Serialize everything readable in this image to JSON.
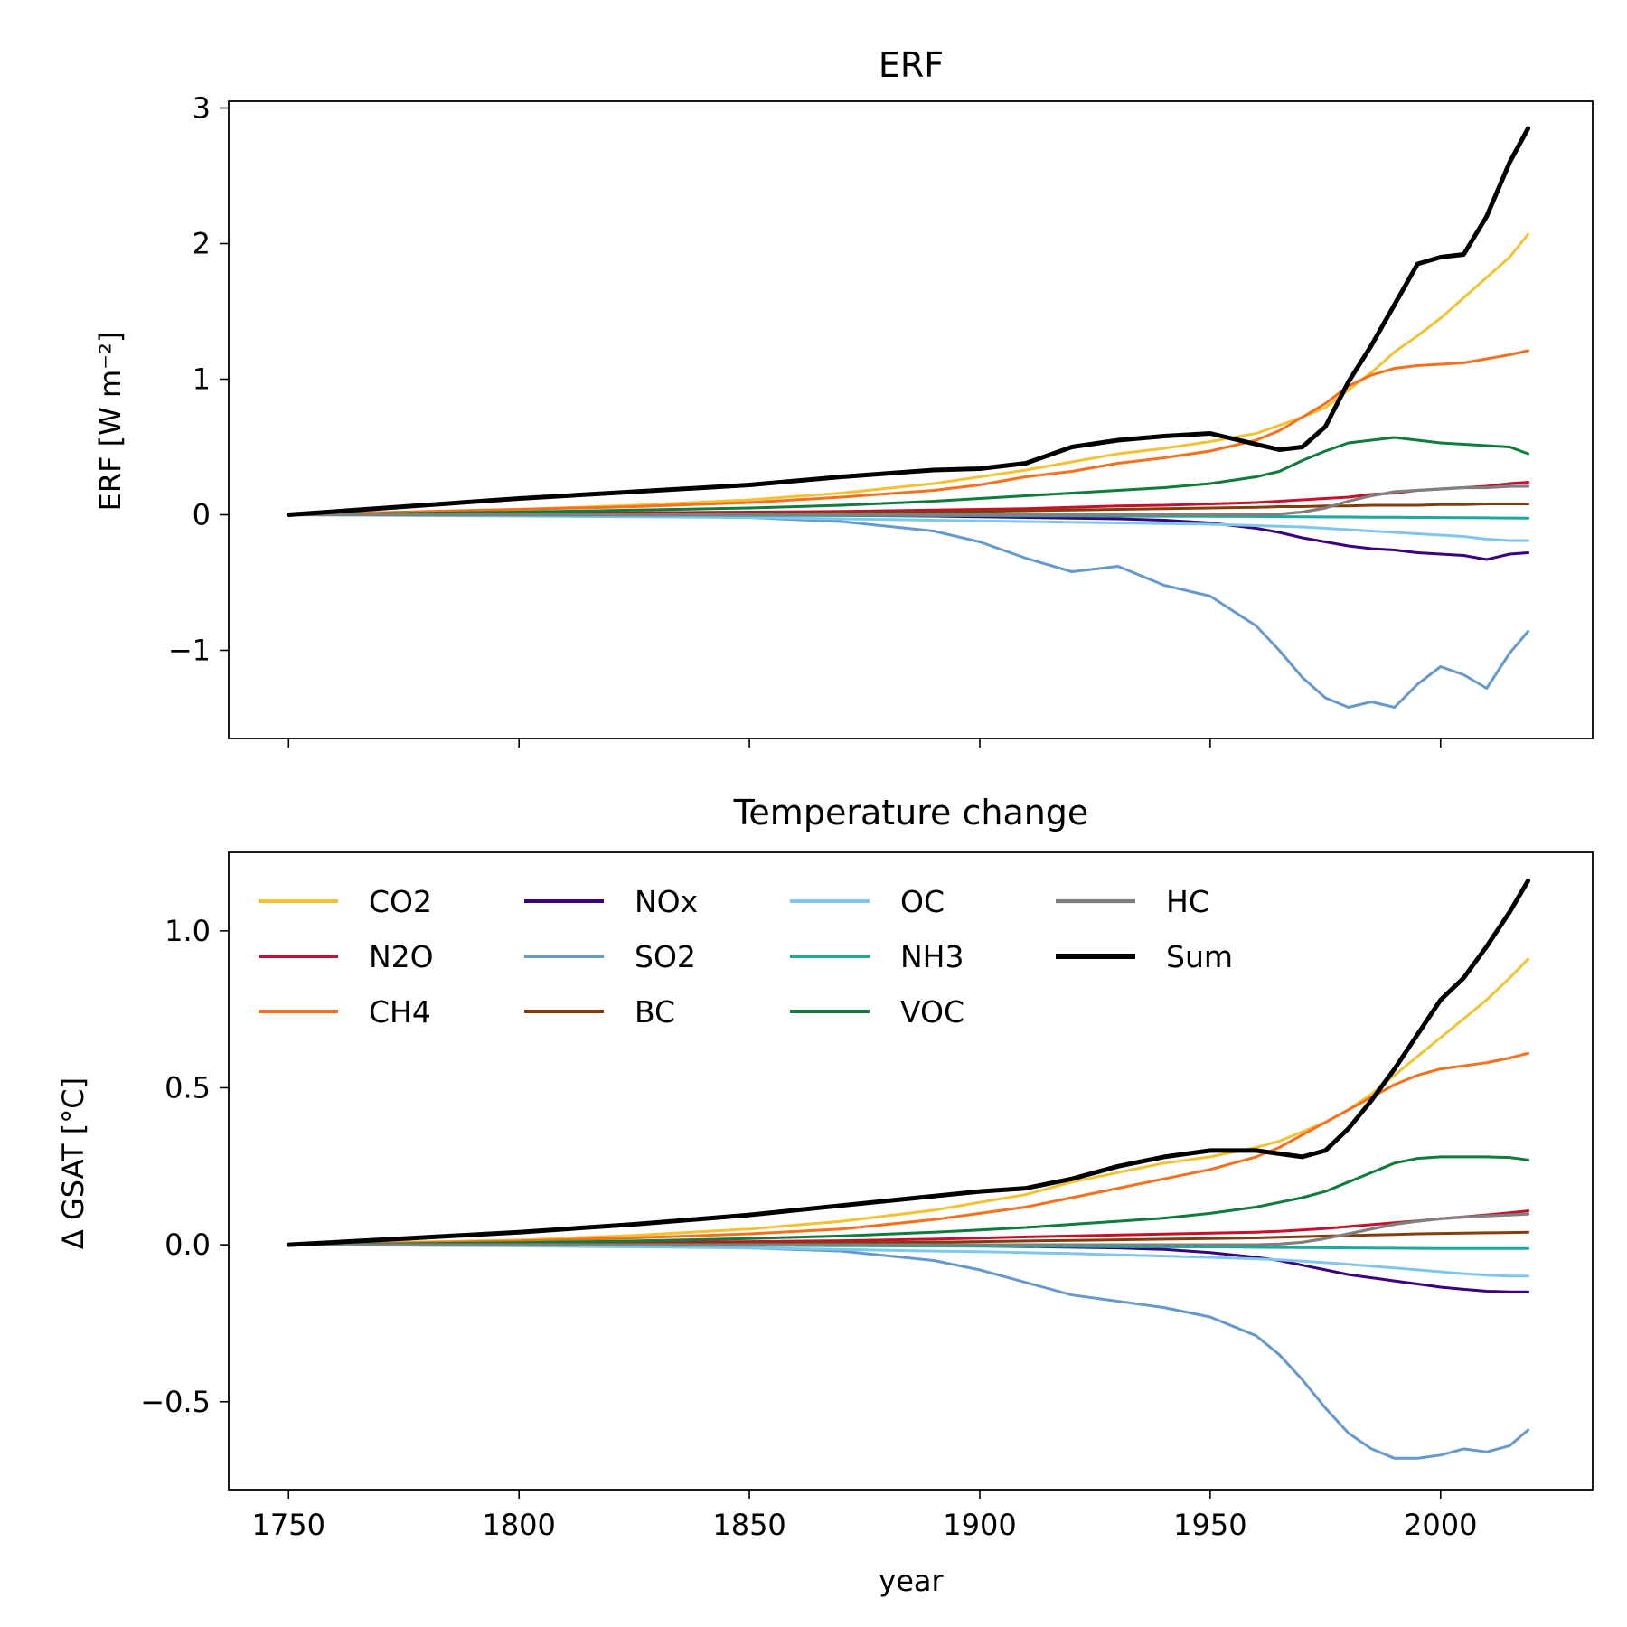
{
  "chart_data": [
    {
      "type": "line",
      "title": "ERF",
      "xlabel": "",
      "ylabel": "ERF [W m⁻²]",
      "xlim": [
        1737,
        2033
      ],
      "ylim": [
        -1.65,
        3.05
      ],
      "xticks": [
        1750,
        1800,
        1850,
        1900,
        1950,
        2000
      ],
      "yticks": [
        -1,
        0,
        1,
        2,
        3
      ],
      "ytick_labels": [
        "−1",
        "0",
        "1",
        "2",
        "3"
      ],
      "show_xtick_labels": false,
      "grid": false,
      "legend": false,
      "x": [
        1750,
        1775,
        1800,
        1825,
        1850,
        1870,
        1890,
        1900,
        1910,
        1920,
        1930,
        1940,
        1950,
        1960,
        1965,
        1970,
        1975,
        1980,
        1985,
        1990,
        1995,
        2000,
        2005,
        2010,
        2015,
        2019
      ],
      "series": [
        {
          "name": "CO2",
          "color": "#f2c234",
          "width": 3,
          "values": [
            0,
            0.02,
            0.04,
            0.07,
            0.11,
            0.16,
            0.23,
            0.28,
            0.33,
            0.39,
            0.45,
            0.49,
            0.54,
            0.6,
            0.66,
            0.72,
            0.79,
            0.92,
            1.05,
            1.2,
            1.32,
            1.45,
            1.6,
            1.75,
            1.9,
            2.07
          ]
        },
        {
          "name": "N2O",
          "color": "#c8102e",
          "width": 3,
          "values": [
            0,
            0.005,
            0.01,
            0.015,
            0.02,
            0.025,
            0.035,
            0.04,
            0.045,
            0.055,
            0.065,
            0.07,
            0.08,
            0.09,
            0.1,
            0.11,
            0.12,
            0.13,
            0.15,
            0.16,
            0.18,
            0.19,
            0.2,
            0.21,
            0.23,
            0.24
          ]
        },
        {
          "name": "CH4",
          "color": "#f8701c",
          "width": 3,
          "values": [
            0,
            0.02,
            0.04,
            0.06,
            0.09,
            0.13,
            0.18,
            0.22,
            0.28,
            0.32,
            0.38,
            0.42,
            0.47,
            0.55,
            0.62,
            0.72,
            0.82,
            0.95,
            1.03,
            1.08,
            1.1,
            1.11,
            1.12,
            1.15,
            1.18,
            1.21
          ]
        },
        {
          "name": "NOx",
          "color": "#3b0280",
          "width": 3,
          "values": [
            0,
            0,
            0,
            0,
            0,
            -0.005,
            -0.01,
            -0.015,
            -0.02,
            -0.025,
            -0.03,
            -0.04,
            -0.06,
            -0.1,
            -0.13,
            -0.17,
            -0.2,
            -0.23,
            -0.25,
            -0.26,
            -0.28,
            -0.29,
            -0.3,
            -0.33,
            -0.29,
            -0.28
          ]
        },
        {
          "name": "SO2",
          "color": "#6699cc",
          "width": 3,
          "values": [
            0,
            -0.002,
            -0.005,
            -0.01,
            -0.02,
            -0.05,
            -0.12,
            -0.2,
            -0.32,
            -0.42,
            -0.38,
            -0.52,
            -0.6,
            -0.82,
            -1.0,
            -1.2,
            -1.35,
            -1.42,
            -1.38,
            -1.42,
            -1.25,
            -1.12,
            -1.18,
            -1.28,
            -1.02,
            -0.86
          ]
        },
        {
          "name": "BC",
          "color": "#853c0b",
          "width": 3,
          "values": [
            0,
            0.002,
            0.005,
            0.008,
            0.012,
            0.015,
            0.02,
            0.025,
            0.03,
            0.035,
            0.04,
            0.045,
            0.05,
            0.055,
            0.06,
            0.06,
            0.065,
            0.065,
            0.07,
            0.07,
            0.07,
            0.075,
            0.075,
            0.08,
            0.08,
            0.08
          ]
        },
        {
          "name": "OC",
          "color": "#7ec8f0",
          "width": 3,
          "values": [
            0,
            -0.005,
            -0.01,
            -0.015,
            -0.02,
            -0.03,
            -0.04,
            -0.045,
            -0.05,
            -0.055,
            -0.06,
            -0.065,
            -0.07,
            -0.08,
            -0.085,
            -0.09,
            -0.1,
            -0.11,
            -0.12,
            -0.13,
            -0.14,
            -0.15,
            -0.16,
            -0.18,
            -0.19,
            -0.19
          ]
        },
        {
          "name": "NH3",
          "color": "#1aa99a",
          "width": 3,
          "values": [
            0,
            -0.001,
            -0.002,
            -0.003,
            -0.004,
            -0.005,
            -0.006,
            -0.007,
            -0.008,
            -0.009,
            -0.01,
            -0.011,
            -0.012,
            -0.013,
            -0.014,
            -0.015,
            -0.016,
            -0.017,
            -0.018,
            -0.019,
            -0.02,
            -0.021,
            -0.022,
            -0.023,
            -0.024,
            -0.025
          ]
        },
        {
          "name": "VOC",
          "color": "#0f7c3c",
          "width": 3,
          "values": [
            0,
            0.01,
            0.02,
            0.035,
            0.05,
            0.07,
            0.1,
            0.12,
            0.14,
            0.16,
            0.18,
            0.2,
            0.23,
            0.28,
            0.32,
            0.4,
            0.47,
            0.53,
            0.55,
            0.57,
            0.55,
            0.53,
            0.52,
            0.51,
            0.5,
            0.45
          ]
        },
        {
          "name": "HC",
          "color": "#808080",
          "width": 3.2,
          "values": [
            0,
            0,
            0,
            0,
            0,
            0,
            0,
            0,
            0,
            0,
            0,
            0,
            0,
            0,
            0.005,
            0.02,
            0.05,
            0.1,
            0.14,
            0.17,
            0.18,
            0.19,
            0.2,
            0.2,
            0.21,
            0.21
          ]
        },
        {
          "name": "Sum",
          "color": "#000000",
          "width": 5,
          "values": [
            0,
            0.06,
            0.12,
            0.17,
            0.22,
            0.28,
            0.33,
            0.34,
            0.38,
            0.5,
            0.55,
            0.58,
            0.6,
            0.52,
            0.48,
            0.5,
            0.65,
            0.98,
            1.25,
            1.55,
            1.85,
            1.9,
            1.92,
            2.2,
            2.6,
            2.85
          ]
        }
      ]
    },
    {
      "type": "line",
      "title": "Temperature change",
      "xlabel": "year",
      "ylabel": "Δ GSAT [°C]",
      "xlim": [
        1737,
        2033
      ],
      "ylim": [
        -0.78,
        1.25
      ],
      "xticks": [
        1750,
        1800,
        1850,
        1900,
        1950,
        2000
      ],
      "xtick_labels": [
        "1750",
        "1800",
        "1850",
        "1900",
        "1950",
        "2000"
      ],
      "yticks": [
        -0.5,
        0,
        0.5,
        1.0
      ],
      "ytick_labels": [
        "−0.5",
        "0.0",
        "0.5",
        "1.0"
      ],
      "grid": false,
      "legend": true,
      "legend_position": "top-left",
      "legend_columns": 4,
      "x": [
        1750,
        1775,
        1800,
        1825,
        1850,
        1870,
        1890,
        1900,
        1910,
        1920,
        1930,
        1940,
        1950,
        1960,
        1965,
        1970,
        1975,
        1980,
        1985,
        1990,
        1995,
        2000,
        2005,
        2010,
        2015,
        2019
      ],
      "series": [
        {
          "name": "CO2",
          "color": "#f2c234",
          "width": 3,
          "values": [
            0,
            0.008,
            0.015,
            0.03,
            0.05,
            0.075,
            0.11,
            0.135,
            0.16,
            0.2,
            0.23,
            0.26,
            0.28,
            0.31,
            0.33,
            0.36,
            0.39,
            0.43,
            0.48,
            0.54,
            0.6,
            0.66,
            0.72,
            0.78,
            0.85,
            0.91
          ]
        },
        {
          "name": "N2O",
          "color": "#c8102e",
          "width": 3,
          "values": [
            0,
            0.002,
            0.004,
            0.007,
            0.01,
            0.013,
            0.018,
            0.021,
            0.025,
            0.028,
            0.031,
            0.034,
            0.037,
            0.04,
            0.043,
            0.047,
            0.052,
            0.058,
            0.064,
            0.07,
            0.076,
            0.083,
            0.089,
            0.095,
            0.102,
            0.108
          ]
        },
        {
          "name": "CH4",
          "color": "#f8701c",
          "width": 3,
          "values": [
            0,
            0.006,
            0.012,
            0.022,
            0.035,
            0.05,
            0.08,
            0.1,
            0.12,
            0.15,
            0.18,
            0.21,
            0.24,
            0.28,
            0.31,
            0.35,
            0.39,
            0.43,
            0.47,
            0.51,
            0.54,
            0.56,
            0.57,
            0.58,
            0.595,
            0.61
          ]
        },
        {
          "name": "NOx",
          "color": "#3b0280",
          "width": 3,
          "values": [
            0,
            0,
            0,
            0,
            0,
            -0.002,
            -0.003,
            -0.004,
            -0.006,
            -0.008,
            -0.01,
            -0.015,
            -0.025,
            -0.04,
            -0.05,
            -0.065,
            -0.08,
            -0.095,
            -0.105,
            -0.115,
            -0.125,
            -0.135,
            -0.142,
            -0.148,
            -0.15,
            -0.15
          ]
        },
        {
          "name": "SO2",
          "color": "#6699cc",
          "width": 3,
          "values": [
            0,
            -0.001,
            -0.002,
            -0.005,
            -0.01,
            -0.02,
            -0.05,
            -0.08,
            -0.12,
            -0.16,
            -0.18,
            -0.2,
            -0.23,
            -0.29,
            -0.35,
            -0.43,
            -0.52,
            -0.6,
            -0.65,
            -0.68,
            -0.68,
            -0.67,
            -0.65,
            -0.66,
            -0.64,
            -0.59
          ]
        },
        {
          "name": "BC",
          "color": "#853c0b",
          "width": 3,
          "values": [
            0,
            0.001,
            0.002,
            0.003,
            0.005,
            0.006,
            0.008,
            0.01,
            0.012,
            0.014,
            0.016,
            0.018,
            0.02,
            0.022,
            0.024,
            0.026,
            0.028,
            0.029,
            0.031,
            0.033,
            0.035,
            0.036,
            0.037,
            0.038,
            0.039,
            0.04
          ]
        },
        {
          "name": "OC",
          "color": "#7ec8f0",
          "width": 3,
          "values": [
            0,
            -0.002,
            -0.004,
            -0.007,
            -0.01,
            -0.015,
            -0.02,
            -0.022,
            -0.025,
            -0.028,
            -0.032,
            -0.036,
            -0.04,
            -0.045,
            -0.048,
            -0.052,
            -0.057,
            -0.062,
            -0.068,
            -0.074,
            -0.08,
            -0.086,
            -0.092,
            -0.097,
            -0.1,
            -0.1
          ]
        },
        {
          "name": "NH3",
          "color": "#1aa99a",
          "width": 3,
          "values": [
            0,
            -0.0005,
            -0.001,
            -0.0015,
            -0.002,
            -0.003,
            -0.004,
            -0.0045,
            -0.005,
            -0.0055,
            -0.006,
            -0.0065,
            -0.007,
            -0.008,
            -0.0085,
            -0.009,
            -0.0095,
            -0.01,
            -0.0105,
            -0.011,
            -0.0115,
            -0.012,
            -0.012,
            -0.012,
            -0.012,
            -0.012
          ]
        },
        {
          "name": "VOC",
          "color": "#0f7c3c",
          "width": 3,
          "values": [
            0,
            0.003,
            0.007,
            0.012,
            0.02,
            0.028,
            0.04,
            0.047,
            0.055,
            0.065,
            0.075,
            0.085,
            0.1,
            0.12,
            0.135,
            0.15,
            0.17,
            0.2,
            0.23,
            0.26,
            0.275,
            0.28,
            0.28,
            0.28,
            0.278,
            0.27
          ]
        },
        {
          "name": "HC",
          "color": "#808080",
          "width": 3.2,
          "values": [
            0,
            0,
            0,
            0,
            0,
            0,
            0,
            0,
            0,
            0,
            0,
            0,
            0,
            0,
            0.002,
            0.008,
            0.02,
            0.035,
            0.05,
            0.065,
            0.075,
            0.083,
            0.088,
            0.092,
            0.095,
            0.098
          ]
        },
        {
          "name": "Sum",
          "color": "#000000",
          "width": 5,
          "values": [
            0,
            0.02,
            0.04,
            0.065,
            0.095,
            0.125,
            0.155,
            0.17,
            0.18,
            0.21,
            0.25,
            0.28,
            0.3,
            0.3,
            0.29,
            0.28,
            0.3,
            0.37,
            0.46,
            0.56,
            0.67,
            0.78,
            0.85,
            0.95,
            1.06,
            1.16
          ]
        }
      ]
    }
  ]
}
